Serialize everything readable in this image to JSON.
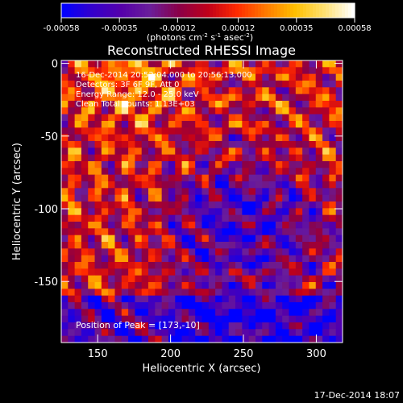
{
  "colorbar": {
    "ticks": [
      "-0.00058",
      "-0.00035",
      "-0.00012",
      "0.00012",
      "0.00035",
      "0.00058"
    ],
    "unit_parts": [
      "(photons cm",
      "-2",
      " s",
      "-1",
      " asec",
      "-2",
      ")"
    ],
    "colors": [
      "#0000ff",
      "#3300cc",
      "#5500aa",
      "#6a1e9a",
      "#8a0048",
      "#c0001a",
      "#ff2a00",
      "#ff7a00",
      "#ffbf00",
      "#ffe070",
      "#ffffff"
    ]
  },
  "header": {
    "title": "Reconstructed RHESSI Image",
    "info_lines": [
      "16-Dec-2014 20:52:04.000 to 20:56:13.000",
      "Detectors: 3F 6F 9F, Att 0",
      "Energy Range: 12.0 - 25.0 keV",
      "Clean    Total counts: 1.13E+03"
    ],
    "peak_label": "Position of Peak = [173,-10]"
  },
  "footer": {
    "timestamp": "17-Dec-2014 18:07"
  },
  "chart_data": {
    "type": "heatmap",
    "title": "Reconstructed RHESSI Image",
    "xlabel": "Heliocentric X (arcsec)",
    "ylabel": "Heliocentric Y (arcsec)",
    "xlim": [
      125,
      318
    ],
    "ylim": [
      -192,
      2
    ],
    "x_ticks": [
      150,
      200,
      250,
      300
    ],
    "y_ticks": [
      0,
      -50,
      -100,
      -150
    ],
    "x_tick_labels": [
      "150",
      "200",
      "250",
      "300"
    ],
    "y_tick_labels": [
      "0",
      "-50",
      "-100",
      "-150"
    ],
    "zlim": [
      -0.00058,
      0.00058
    ],
    "peak_position": [
      173,
      -10
    ],
    "colormap": "blue-purple-red-yellow-white"
  }
}
